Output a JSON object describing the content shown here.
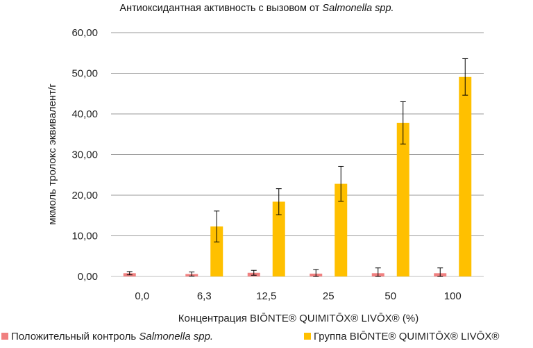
{
  "chart_data": {
    "type": "bar",
    "title_main": "Антиоксидантная активность с вызовом от ",
    "title_italic": "Salmonella spp.",
    "xlabel": "Концентрация BIŌNTE® QUIMITŌX® LIVŌX® (%)",
    "ylabel": "мкмоль тролокс эквивалент/г",
    "categories": [
      "0,0",
      "6,3",
      "12,5",
      "25",
      "50",
      "100"
    ],
    "y_ticks": [
      "0,00",
      "10,00",
      "20,00",
      "30,00",
      "40,00",
      "50,00",
      "60,00"
    ],
    "ylim": [
      0,
      60
    ],
    "grid": true,
    "legend_position": "bottom",
    "series": [
      {
        "name_main": "Положительный контроль ",
        "name_italic": "Salmonella spp.",
        "color": "#F08080",
        "values": [
          0.8,
          0.6,
          0.9,
          0.7,
          0.8,
          0.8
        ],
        "errors": [
          0.4,
          0.5,
          0.6,
          1.0,
          1.3,
          1.3
        ]
      },
      {
        "name_main": "Группа BIŌNTE® QUIMITŌX® LIVŌX®",
        "name_italic": "",
        "color": "#FFC000",
        "values": [
          null,
          12.3,
          18.4,
          22.8,
          37.8,
          49.1
        ],
        "errors": [
          null,
          3.8,
          3.2,
          4.3,
          5.2,
          4.5
        ]
      }
    ]
  }
}
